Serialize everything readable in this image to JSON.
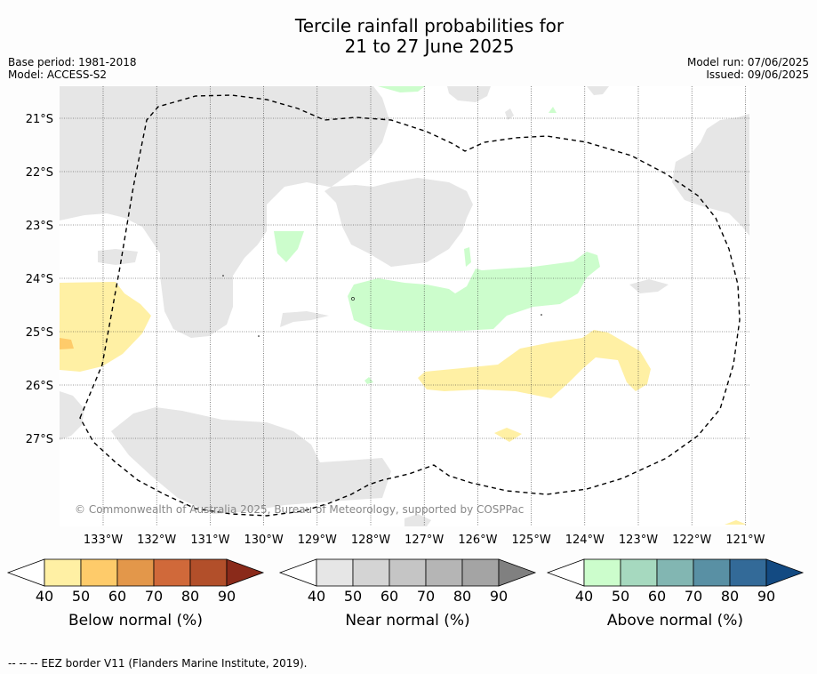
{
  "title_line1": "Tercile rainfall probabilities for",
  "title_line2": "21 to 27 June 2025",
  "base_period": "Base period: 1981-2018",
  "model": "Model: ACCESS-S2",
  "model_run": "Model run: 07/06/2025",
  "issued": "Issued: 09/06/2025",
  "copyright": "© Commonwealth of Australia 2025, Bureau of Meteorology, supported by COSPPac",
  "lon_labels": [
    "133°W",
    "132°W",
    "131°W",
    "130°W",
    "129°W",
    "128°W",
    "127°W",
    "126°W",
    "125°W",
    "124°W",
    "123°W",
    "122°W",
    "121°W"
  ],
  "lat_labels": [
    "21°S",
    "22°S",
    "23°S",
    "24°S",
    "25°S",
    "26°S",
    "27°S"
  ],
  "colorbars": [
    {
      "label": "Below normal (%)",
      "ticks": [
        "40",
        "50",
        "60",
        "70",
        "80",
        "90"
      ],
      "colors": [
        "#fff0a4",
        "#fecb6a",
        "#e3974a",
        "#d0693a",
        "#b24f2a",
        "#8a2a1a"
      ]
    },
    {
      "label": "Near normal (%)",
      "ticks": [
        "40",
        "50",
        "60",
        "70",
        "80",
        "90"
      ],
      "colors": [
        "#e6e6e6",
        "#d4d4d4",
        "#c5c5c5",
        "#b5b5b5",
        "#a4a4a4",
        "#808080"
      ]
    },
    {
      "label": "Above normal (%)",
      "ticks": [
        "40",
        "50",
        "60",
        "70",
        "80",
        "90"
      ],
      "colors": [
        "#ccfdcc",
        "#a6d9bf",
        "#82b6b2",
        "#5990a4",
        "#336a98",
        "#134a82"
      ]
    }
  ],
  "legend_note": "--  --  -- EEZ border V11 (Flanders Marine Institute, 2019)."
}
